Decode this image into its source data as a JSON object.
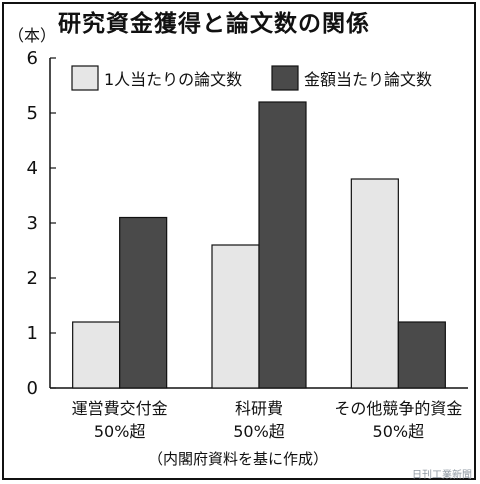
{
  "chart_data": {
    "type": "bar",
    "title": "研究資金獲得と論文数の関係",
    "unit_label": "（本）",
    "categories": [
      [
        "運営費交付金",
        "50%超"
      ],
      [
        "科研費",
        "50%超"
      ],
      [
        "その他競争的資金",
        "50%超"
      ]
    ],
    "series": [
      {
        "name": "1人当たりの論文数",
        "values": [
          1.2,
          2.6,
          3.8
        ],
        "color": "#e6e6e6"
      },
      {
        "name": "金額当たり論文数",
        "values": [
          3.1,
          5.2,
          1.2
        ],
        "color": "#4a4a4a"
      }
    ],
    "yticks": [
      "0",
      "1",
      "2",
      "3",
      "4",
      "5",
      "6"
    ],
    "ylim": [
      0,
      6
    ],
    "grid": false,
    "legend": "top-right",
    "source": "（内閣府資料を基に作成）",
    "credit": "日刊工業新聞"
  }
}
